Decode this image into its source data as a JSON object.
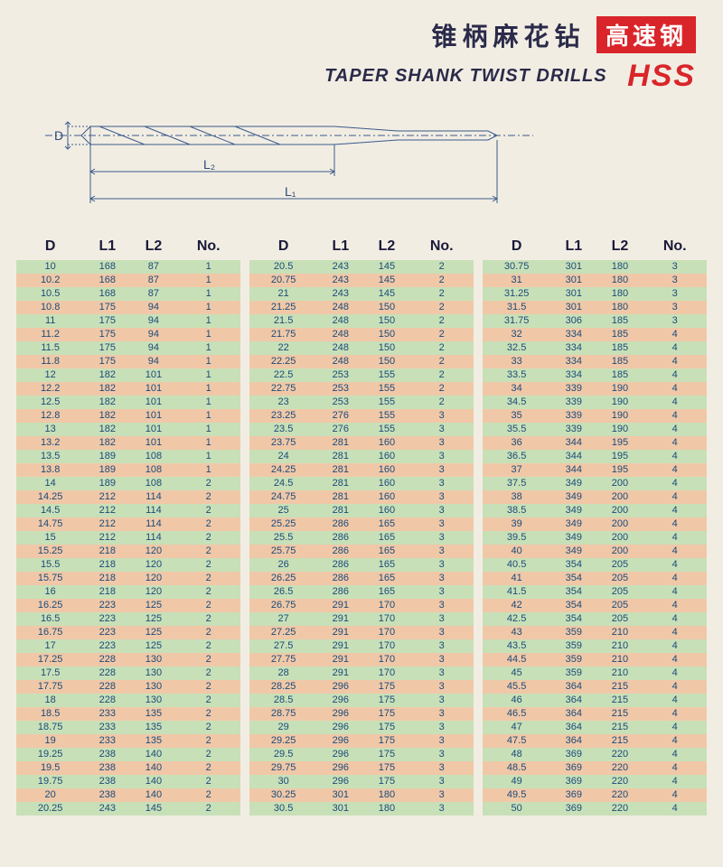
{
  "header": {
    "title_cn": "锥柄麻花钻",
    "badge_cn": "高速钢",
    "title_en": "TAPER SHANK TWIST DRILLS",
    "hss": "HSS"
  },
  "diagram": {
    "labels": {
      "D": "D",
      "L1": "L₁",
      "L2": "L₂"
    },
    "stroke": "#3a5a8a"
  },
  "table": {
    "headers": [
      "D",
      "L1",
      "L2",
      "No."
    ],
    "stripe_colors": {
      "even": "#c8e0b8",
      "odd": "#f0c8a8"
    },
    "text_color": "#1a4a7a",
    "header_color": "#1a1a3a",
    "header_fontsize": 16,
    "body_fontsize": 11,
    "groups": [
      [
        [
          "10",
          "168",
          "87",
          "1"
        ],
        [
          "10.2",
          "168",
          "87",
          "1"
        ],
        [
          "10.5",
          "168",
          "87",
          "1"
        ],
        [
          "10.8",
          "175",
          "94",
          "1"
        ],
        [
          "11",
          "175",
          "94",
          "1"
        ],
        [
          "11.2",
          "175",
          "94",
          "1"
        ],
        [
          "11.5",
          "175",
          "94",
          "1"
        ],
        [
          "11.8",
          "175",
          "94",
          "1"
        ],
        [
          "12",
          "182",
          "101",
          "1"
        ],
        [
          "12.2",
          "182",
          "101",
          "1"
        ],
        [
          "12.5",
          "182",
          "101",
          "1"
        ],
        [
          "12.8",
          "182",
          "101",
          "1"
        ],
        [
          "13",
          "182",
          "101",
          "1"
        ],
        [
          "13.2",
          "182",
          "101",
          "1"
        ],
        [
          "13.5",
          "189",
          "108",
          "1"
        ],
        [
          "13.8",
          "189",
          "108",
          "1"
        ],
        [
          "14",
          "189",
          "108",
          "2"
        ],
        [
          "14.25",
          "212",
          "114",
          "2"
        ],
        [
          "14.5",
          "212",
          "114",
          "2"
        ],
        [
          "14.75",
          "212",
          "114",
          "2"
        ],
        [
          "15",
          "212",
          "114",
          "2"
        ],
        [
          "15.25",
          "218",
          "120",
          "2"
        ],
        [
          "15.5",
          "218",
          "120",
          "2"
        ],
        [
          "15.75",
          "218",
          "120",
          "2"
        ],
        [
          "16",
          "218",
          "120",
          "2"
        ],
        [
          "16.25",
          "223",
          "125",
          "2"
        ],
        [
          "16.5",
          "223",
          "125",
          "2"
        ],
        [
          "16.75",
          "223",
          "125",
          "2"
        ],
        [
          "17",
          "223",
          "125",
          "2"
        ],
        [
          "17.25",
          "228",
          "130",
          "2"
        ],
        [
          "17.5",
          "228",
          "130",
          "2"
        ],
        [
          "17.75",
          "228",
          "130",
          "2"
        ],
        [
          "18",
          "228",
          "130",
          "2"
        ],
        [
          "18.5",
          "233",
          "135",
          "2"
        ],
        [
          "18.75",
          "233",
          "135",
          "2"
        ],
        [
          "19",
          "233",
          "135",
          "2"
        ],
        [
          "19.25",
          "238",
          "140",
          "2"
        ],
        [
          "19.5",
          "238",
          "140",
          "2"
        ],
        [
          "19.75",
          "238",
          "140",
          "2"
        ],
        [
          "20",
          "238",
          "140",
          "2"
        ],
        [
          "20.25",
          "243",
          "145",
          "2"
        ]
      ],
      [
        [
          "20.5",
          "243",
          "145",
          "2"
        ],
        [
          "20.75",
          "243",
          "145",
          "2"
        ],
        [
          "21",
          "243",
          "145",
          "2"
        ],
        [
          "21.25",
          "248",
          "150",
          "2"
        ],
        [
          "21.5",
          "248",
          "150",
          "2"
        ],
        [
          "21.75",
          "248",
          "150",
          "2"
        ],
        [
          "22",
          "248",
          "150",
          "2"
        ],
        [
          "22.25",
          "248",
          "150",
          "2"
        ],
        [
          "22.5",
          "253",
          "155",
          "2"
        ],
        [
          "22.75",
          "253",
          "155",
          "2"
        ],
        [
          "23",
          "253",
          "155",
          "2"
        ],
        [
          "23.25",
          "276",
          "155",
          "3"
        ],
        [
          "23.5",
          "276",
          "155",
          "3"
        ],
        [
          "23.75",
          "281",
          "160",
          "3"
        ],
        [
          "24",
          "281",
          "160",
          "3"
        ],
        [
          "24.25",
          "281",
          "160",
          "3"
        ],
        [
          "24.5",
          "281",
          "160",
          "3"
        ],
        [
          "24.75",
          "281",
          "160",
          "3"
        ],
        [
          "25",
          "281",
          "160",
          "3"
        ],
        [
          "25.25",
          "286",
          "165",
          "3"
        ],
        [
          "25.5",
          "286",
          "165",
          "3"
        ],
        [
          "25.75",
          "286",
          "165",
          "3"
        ],
        [
          "26",
          "286",
          "165",
          "3"
        ],
        [
          "26.25",
          "286",
          "165",
          "3"
        ],
        [
          "26.5",
          "286",
          "165",
          "3"
        ],
        [
          "26.75",
          "291",
          "170",
          "3"
        ],
        [
          "27",
          "291",
          "170",
          "3"
        ],
        [
          "27.25",
          "291",
          "170",
          "3"
        ],
        [
          "27.5",
          "291",
          "170",
          "3"
        ],
        [
          "27.75",
          "291",
          "170",
          "3"
        ],
        [
          "28",
          "291",
          "170",
          "3"
        ],
        [
          "28.25",
          "296",
          "175",
          "3"
        ],
        [
          "28.5",
          "296",
          "175",
          "3"
        ],
        [
          "28.75",
          "296",
          "175",
          "3"
        ],
        [
          "29",
          "296",
          "175",
          "3"
        ],
        [
          "29.25",
          "296",
          "175",
          "3"
        ],
        [
          "29.5",
          "296",
          "175",
          "3"
        ],
        [
          "29.75",
          "296",
          "175",
          "3"
        ],
        [
          "30",
          "296",
          "175",
          "3"
        ],
        [
          "30.25",
          "301",
          "180",
          "3"
        ],
        [
          "30.5",
          "301",
          "180",
          "3"
        ]
      ],
      [
        [
          "30.75",
          "301",
          "180",
          "3"
        ],
        [
          "31",
          "301",
          "180",
          "3"
        ],
        [
          "31.25",
          "301",
          "180",
          "3"
        ],
        [
          "31.5",
          "301",
          "180",
          "3"
        ],
        [
          "31.75",
          "306",
          "185",
          "3"
        ],
        [
          "32",
          "334",
          "185",
          "4"
        ],
        [
          "32.5",
          "334",
          "185",
          "4"
        ],
        [
          "33",
          "334",
          "185",
          "4"
        ],
        [
          "33.5",
          "334",
          "185",
          "4"
        ],
        [
          "34",
          "339",
          "190",
          "4"
        ],
        [
          "34.5",
          "339",
          "190",
          "4"
        ],
        [
          "35",
          "339",
          "190",
          "4"
        ],
        [
          "35.5",
          "339",
          "190",
          "4"
        ],
        [
          "36",
          "344",
          "195",
          "4"
        ],
        [
          "36.5",
          "344",
          "195",
          "4"
        ],
        [
          "37",
          "344",
          "195",
          "4"
        ],
        [
          "37.5",
          "349",
          "200",
          "4"
        ],
        [
          "38",
          "349",
          "200",
          "4"
        ],
        [
          "38.5",
          "349",
          "200",
          "4"
        ],
        [
          "39",
          "349",
          "200",
          "4"
        ],
        [
          "39.5",
          "349",
          "200",
          "4"
        ],
        [
          "40",
          "349",
          "200",
          "4"
        ],
        [
          "40.5",
          "354",
          "205",
          "4"
        ],
        [
          "41",
          "354",
          "205",
          "4"
        ],
        [
          "41.5",
          "354",
          "205",
          "4"
        ],
        [
          "42",
          "354",
          "205",
          "4"
        ],
        [
          "42.5",
          "354",
          "205",
          "4"
        ],
        [
          "43",
          "359",
          "210",
          "4"
        ],
        [
          "43.5",
          "359",
          "210",
          "4"
        ],
        [
          "44.5",
          "359",
          "210",
          "4"
        ],
        [
          "45",
          "359",
          "210",
          "4"
        ],
        [
          "45.5",
          "364",
          "215",
          "4"
        ],
        [
          "46",
          "364",
          "215",
          "4"
        ],
        [
          "46.5",
          "364",
          "215",
          "4"
        ],
        [
          "47",
          "364",
          "215",
          "4"
        ],
        [
          "47.5",
          "364",
          "215",
          "4"
        ],
        [
          "48",
          "369",
          "220",
          "4"
        ],
        [
          "48.5",
          "369",
          "220",
          "4"
        ],
        [
          "49",
          "369",
          "220",
          "4"
        ],
        [
          "49.5",
          "369",
          "220",
          "4"
        ],
        [
          "50",
          "369",
          "220",
          "4"
        ]
      ]
    ]
  }
}
